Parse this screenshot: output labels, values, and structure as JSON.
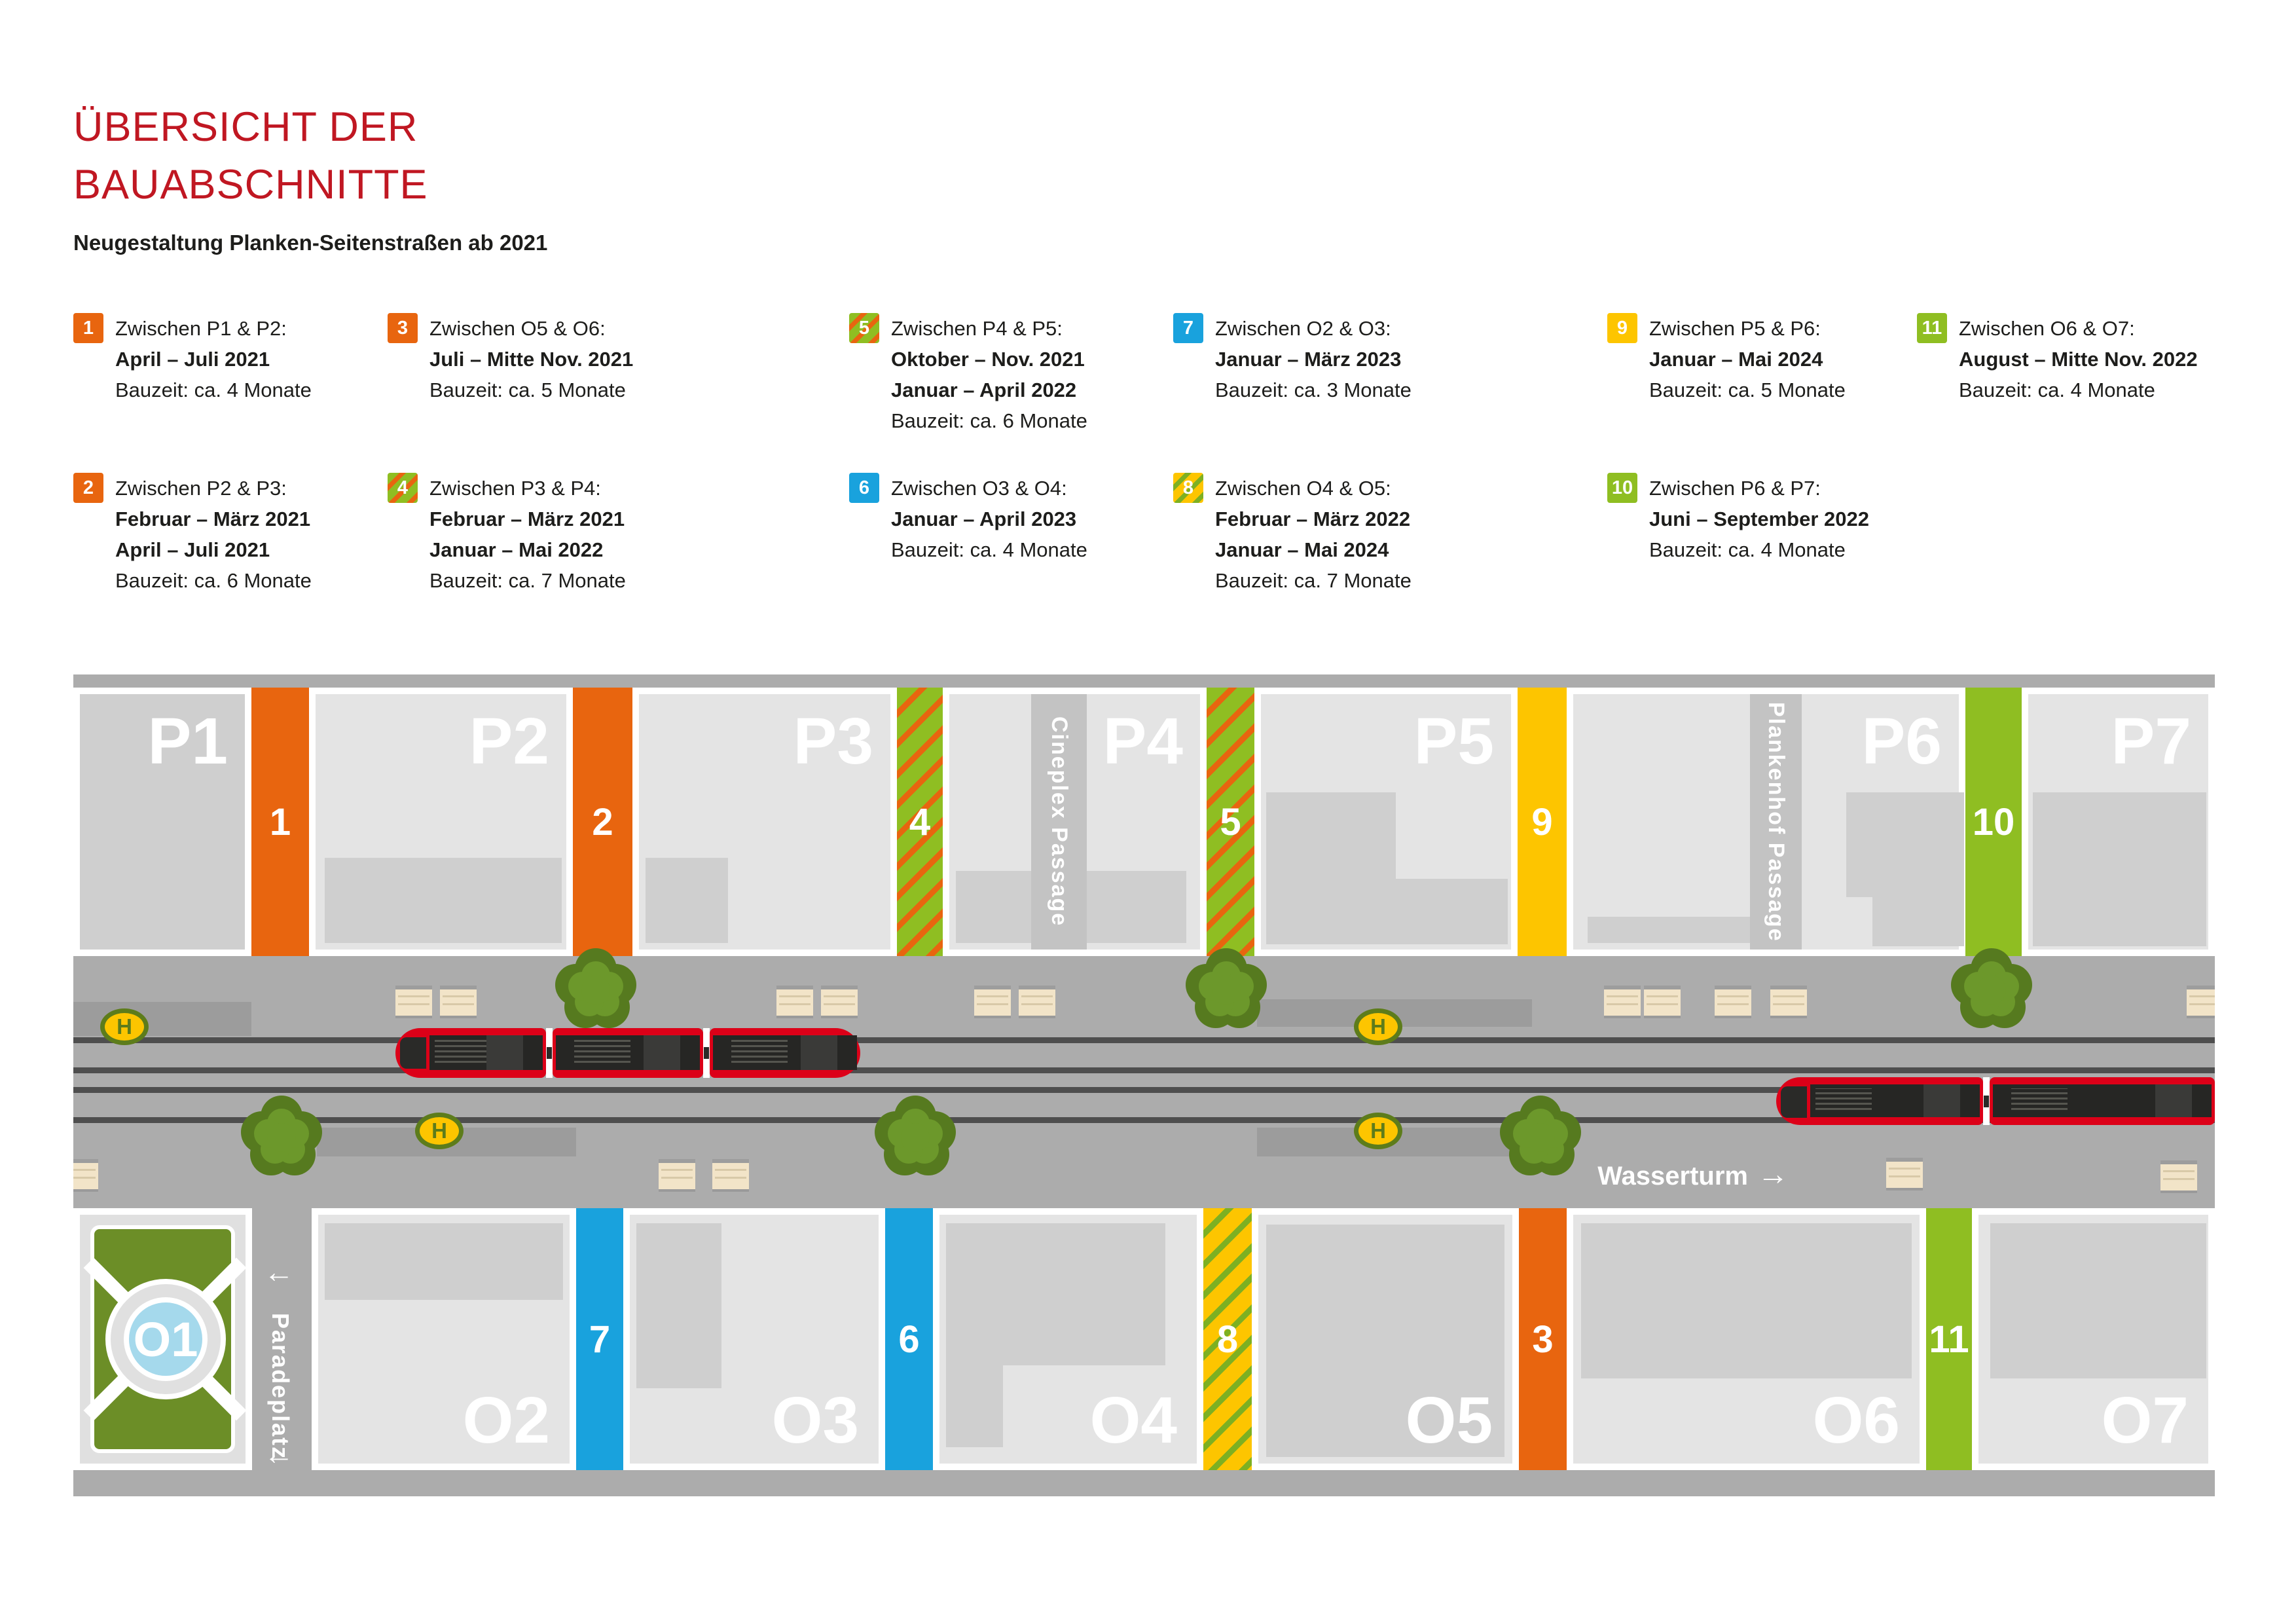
{
  "title": {
    "line1": "ÜBERSICHT DER",
    "line2": "BAUABSCHNITTE",
    "subtitle": "Neugestaltung Planken-Seitenstraßen ab 2021"
  },
  "legend": {
    "items": [
      {
        "num": "1",
        "style": "orange",
        "lines": [
          {
            "text": "Zwischen P1 & P2:",
            "bold": false
          },
          {
            "text": "April – Juli 2021",
            "bold": true
          },
          {
            "text": "Bauzeit: ca. 4 Monate",
            "bold": false
          }
        ]
      },
      {
        "num": "2",
        "style": "orange",
        "lines": [
          {
            "text": "Zwischen P2 & P3:",
            "bold": false
          },
          {
            "text": "Februar – März 2021",
            "bold": true
          },
          {
            "text": "April – Juli 2021",
            "bold": true
          },
          {
            "text": "Bauzeit: ca. 6 Monate",
            "bold": false
          }
        ]
      },
      {
        "num": "3",
        "style": "orange",
        "lines": [
          {
            "text": "Zwischen O5 & O6:",
            "bold": false
          },
          {
            "text": "Juli – Mitte Nov. 2021",
            "bold": true
          },
          {
            "text": "Bauzeit: ca. 5 Monate",
            "bold": false
          }
        ]
      },
      {
        "num": "4",
        "style": "hatch_go",
        "lines": [
          {
            "text": "Zwischen P3 & P4:",
            "bold": false
          },
          {
            "text": "Februar – März 2021",
            "bold": true
          },
          {
            "text": "Januar – Mai 2022",
            "bold": true
          },
          {
            "text": "Bauzeit: ca. 7 Monate",
            "bold": false
          }
        ]
      },
      {
        "num": "5",
        "style": "hatch_go",
        "lines": [
          {
            "text": "Zwischen P4 & P5:",
            "bold": false
          },
          {
            "text": "Oktober – Nov. 2021",
            "bold": true
          },
          {
            "text": "Januar – April 2022",
            "bold": true
          },
          {
            "text": "Bauzeit: ca. 6 Monate",
            "bold": false
          }
        ]
      },
      {
        "num": "6",
        "style": "blue",
        "lines": [
          {
            "text": "Zwischen O3 & O4:",
            "bold": false
          },
          {
            "text": "Januar – April 2023",
            "bold": true
          },
          {
            "text": "Bauzeit: ca. 4 Monate",
            "bold": false
          }
        ]
      },
      {
        "num": "7",
        "style": "blue",
        "lines": [
          {
            "text": "Zwischen O2 & O3:",
            "bold": false
          },
          {
            "text": "Januar – März 2023",
            "bold": true
          },
          {
            "text": "Bauzeit: ca. 3 Monate",
            "bold": false
          }
        ]
      },
      {
        "num": "8",
        "style": "hatch_yg",
        "lines": [
          {
            "text": "Zwischen O4 & O5:",
            "bold": false
          },
          {
            "text": "Februar – März 2022",
            "bold": true
          },
          {
            "text": "Januar – Mai 2024",
            "bold": true
          },
          {
            "text": "Bauzeit: ca. 7 Monate",
            "bold": false
          }
        ]
      },
      {
        "num": "9",
        "style": "yellow",
        "lines": [
          {
            "text": "Zwischen P5 & P6:",
            "bold": false
          },
          {
            "text": "Januar – Mai 2024",
            "bold": true
          },
          {
            "text": "Bauzeit: ca. 5 Monate",
            "bold": false
          }
        ]
      },
      {
        "num": "10",
        "style": "green",
        "lines": [
          {
            "text": "Zwischen P6 & P7:",
            "bold": false
          },
          {
            "text": "Juni – September 2022",
            "bold": true
          },
          {
            "text": "Bauzeit: ca. 4 Monate",
            "bold": false
          }
        ]
      },
      {
        "num": "11",
        "style": "green",
        "lines": [
          {
            "text": "Zwischen O6 & O7:",
            "bold": false
          },
          {
            "text": "August – Mitte Nov. 2022",
            "bold": true
          },
          {
            "text": "Bauzeit: ca. 4 Monate",
            "bold": false
          }
        ]
      }
    ]
  },
  "map": {
    "p_labels": [
      "P1",
      "P2",
      "P3",
      "P4",
      "P5",
      "P6",
      "P7"
    ],
    "o_labels": [
      "O1",
      "O2",
      "O3",
      "O4",
      "O5",
      "O6",
      "O7"
    ],
    "zones": [
      {
        "num": "1",
        "style": "orange"
      },
      {
        "num": "2",
        "style": "orange"
      },
      {
        "num": "3",
        "style": "orange"
      },
      {
        "num": "4",
        "style": "hatch_go"
      },
      {
        "num": "5",
        "style": "hatch_go"
      },
      {
        "num": "6",
        "style": "blue"
      },
      {
        "num": "7",
        "style": "blue"
      },
      {
        "num": "8",
        "style": "hatch_yg"
      },
      {
        "num": "9",
        "style": "yellow"
      },
      {
        "num": "10",
        "style": "green"
      },
      {
        "num": "11",
        "style": "green"
      }
    ],
    "passages": {
      "cineplex": "Cineplex Passage",
      "plankenhof": "Plankenhof Passage"
    },
    "street": {
      "paradeplatz": "Paradeplatz",
      "wasserturm": "Wasserturm",
      "arrow_left": "←",
      "arrow_right": "→",
      "stop_letter": "H"
    }
  },
  "colors": {
    "accent_red": "#c01722",
    "orange": "#e8650f",
    "green": "#8fbe22",
    "yellow": "#fdc500",
    "blue": "#19a2dd",
    "hatch_stripe_orange": "#e8650f",
    "hatch_stripe_green": "#7db022",
    "street_gray": "#acacac",
    "block_gray": "#e4e4e4",
    "building_gray": "#cfcfcf",
    "tram_red": "#dc0018",
    "stop_green": "#5d7c1b",
    "park_green": "#6c8e27",
    "pond_blue": "#a5d9ec"
  }
}
